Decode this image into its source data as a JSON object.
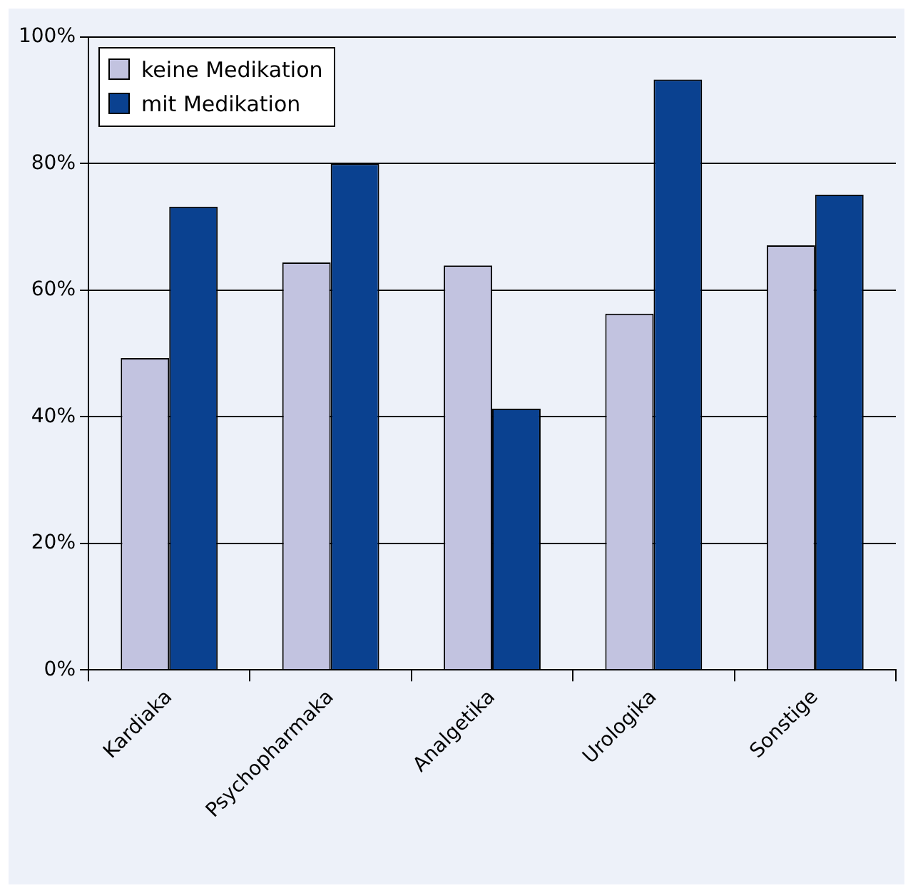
{
  "chart_data": {
    "type": "bar",
    "categories": [
      "Kardiaka",
      "Psychopharmaka",
      "Analgetika",
      "Urologika",
      "Sonstige"
    ],
    "series": [
      {
        "name": "keine Medikation",
        "color": "#c2c3e0",
        "values": [
          49.3,
          64.4,
          63.9,
          56.3,
          67.1
        ]
      },
      {
        "name": "mit Medikation",
        "color": "#0a4190",
        "values": [
          73.2,
          80,
          41.3,
          93.3,
          75.1
        ]
      }
    ],
    "ylim": [
      0,
      100
    ],
    "yticks": [
      {
        "value": 0,
        "label": "0%"
      },
      {
        "value": 20,
        "label": "20%"
      },
      {
        "value": 40,
        "label": "40%"
      },
      {
        "value": 60,
        "label": "60%"
      },
      {
        "value": 80,
        "label": "80%"
      },
      {
        "value": 100,
        "label": "100%"
      }
    ],
    "grid": "y",
    "legend": "top left"
  }
}
